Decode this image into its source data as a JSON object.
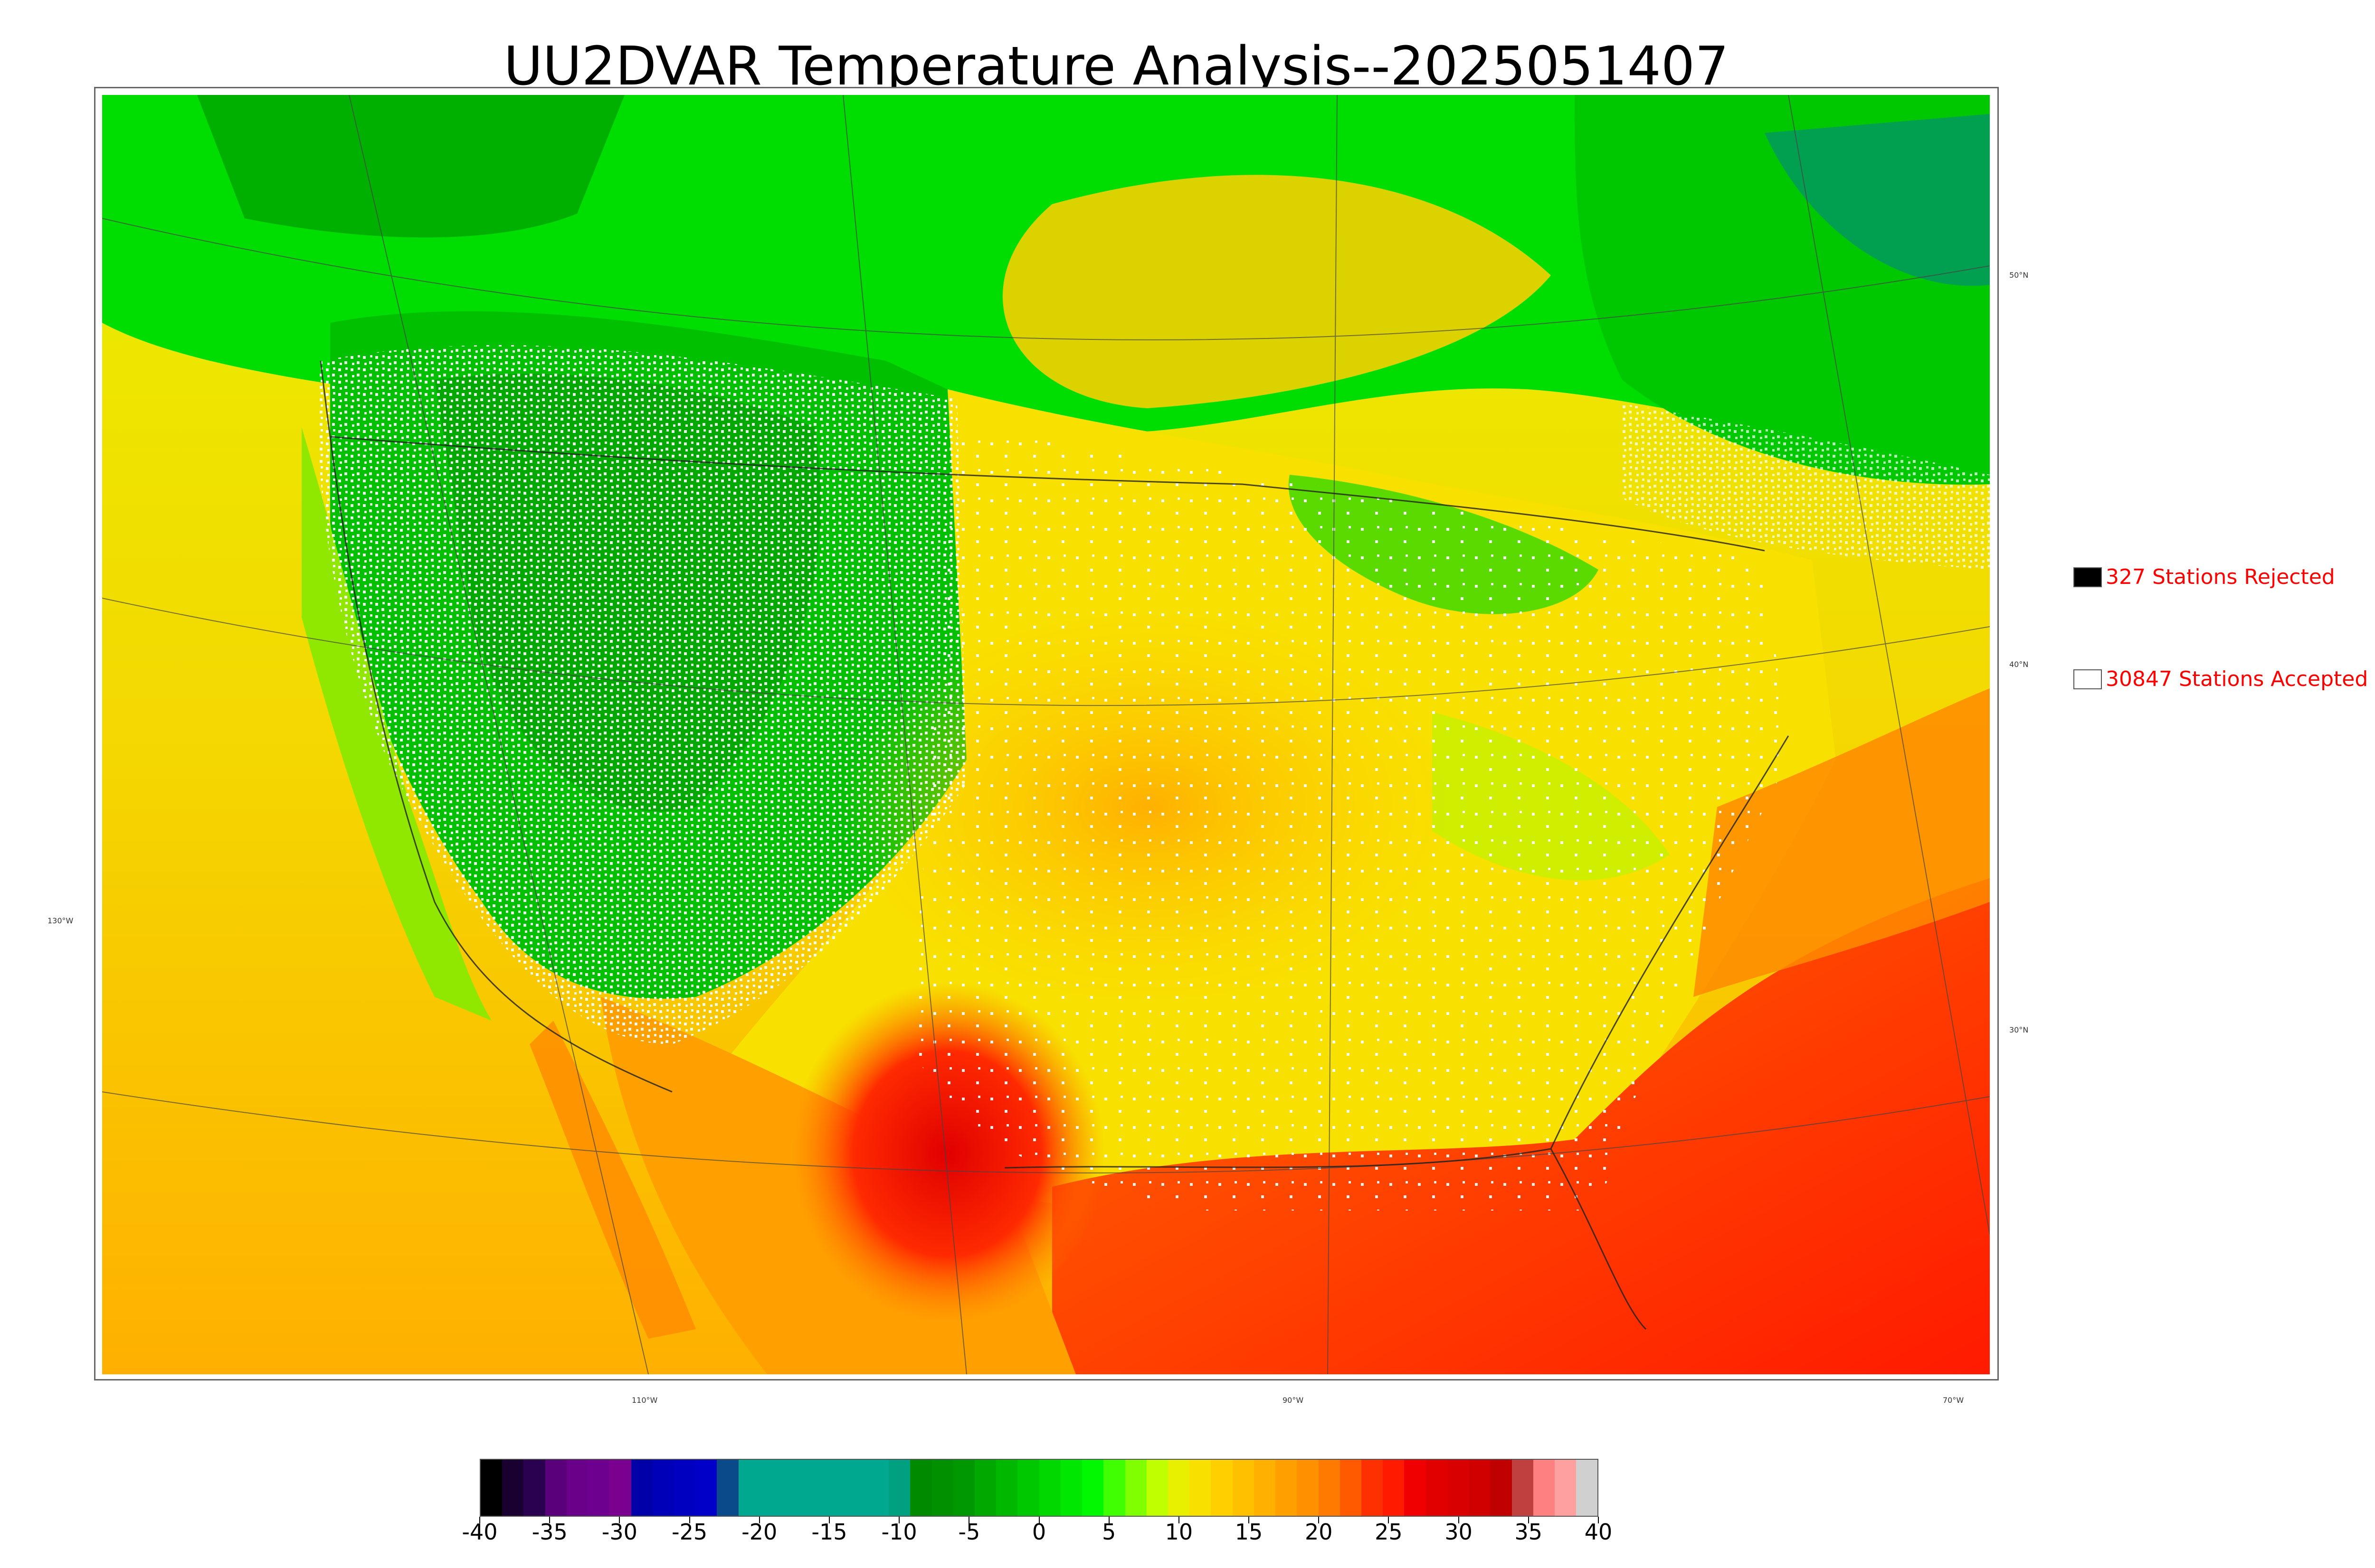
{
  "title": "UU2DVAR Temperature Analysis--2025051407",
  "map": {
    "longitude_labels": [
      "110°W",
      "90°W",
      "70°W"
    ],
    "latitude_labels_right": [
      "50°N",
      "40°N",
      "30°N"
    ],
    "latitude_label_left": "130°W",
    "field_colors": {
      "cold_green": "#00b000",
      "mid_green": "#00dd00",
      "yellow_green": "#c8f000",
      "yellow": "#f0e000",
      "orange": "#ffb000",
      "dark_orange": "#ff7a00",
      "red": "#ff2a00",
      "deep_red": "#e00000",
      "teal": "#00a88c"
    }
  },
  "legend": {
    "rejected": {
      "label": "327 Stations Rejected",
      "count": 327,
      "color": "#000000"
    },
    "accepted": {
      "label": "30847 Stations Accepted",
      "count": 30847,
      "color": "#ffffff"
    }
  },
  "colorbar": {
    "tick_labels": [
      "-40",
      "-35",
      "-30",
      "-25",
      "-20",
      "-15",
      "-10",
      "-5",
      "0",
      "5",
      "10",
      "15",
      "20",
      "25",
      "30",
      "35",
      "40"
    ],
    "range": [
      -40,
      40
    ],
    "segments": [
      "#000000",
      "#1a0030",
      "#2a0050",
      "#5a007a",
      "#6a008a",
      "#6e0090",
      "#7a0090",
      "#0000a8",
      "#0000b8",
      "#0000c0",
      "#0000c8",
      "#0a4a8a",
      "#00a890",
      "#00a890",
      "#00a890",
      "#00a890",
      "#00a890",
      "#00a890",
      "#00a890",
      "#00a080",
      "#008a00",
      "#009000",
      "#009800",
      "#00a800",
      "#00b800",
      "#00c800",
      "#00d800",
      "#00e800",
      "#00f800",
      "#40ff00",
      "#80ff00",
      "#c0ff00",
      "#e8f000",
      "#f8e000",
      "#ffd000",
      "#ffc000",
      "#ffb000",
      "#ffa000",
      "#ff9000",
      "#ff7a00",
      "#ff5a00",
      "#ff3000",
      "#ff1a00",
      "#f00000",
      "#e00000",
      "#d80000",
      "#d00000",
      "#c00000",
      "#c04040",
      "#ff8080",
      "#ffa0a0",
      "#d0d0d0"
    ]
  }
}
